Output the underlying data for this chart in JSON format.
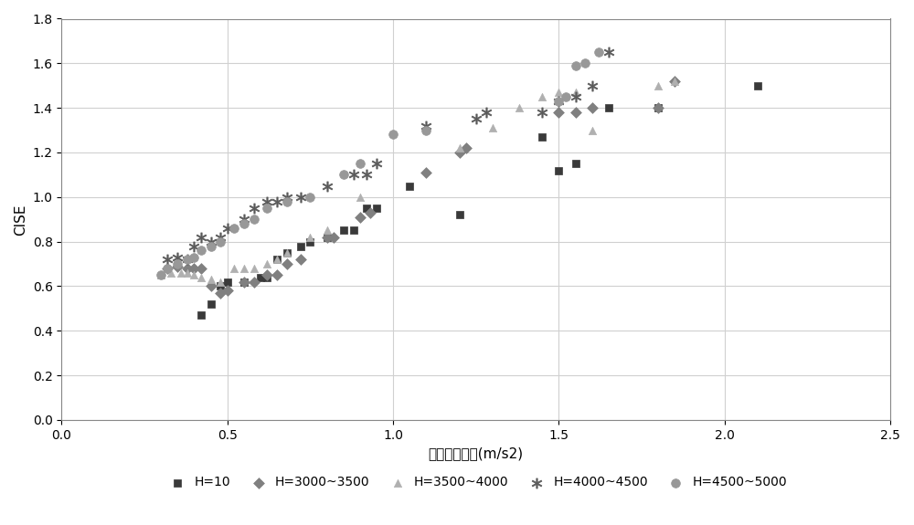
{
  "title": "",
  "xlabel": "横向力加速度(m/s2)",
  "ylabel": "CISE",
  "xlim": [
    0.0,
    2.5
  ],
  "ylim": [
    0.0,
    1.8
  ],
  "xticks": [
    0.0,
    0.5,
    1.0,
    1.5,
    2.0,
    2.5
  ],
  "yticks": [
    0.0,
    0.2,
    0.4,
    0.6,
    0.8,
    1.0,
    1.2,
    1.4,
    1.6,
    1.8
  ],
  "series": [
    {
      "label": "H=10",
      "color": "#3a3a3a",
      "marker": "s",
      "markersize": 6,
      "x": [
        0.42,
        0.45,
        0.48,
        0.5,
        0.55,
        0.6,
        0.62,
        0.65,
        0.68,
        0.72,
        0.75,
        0.8,
        0.85,
        0.88,
        0.92,
        0.95,
        1.05,
        1.2,
        1.45,
        1.5,
        1.55,
        1.65,
        1.8,
        2.1
      ],
      "y": [
        0.47,
        0.52,
        0.6,
        0.62,
        0.62,
        0.64,
        0.64,
        0.72,
        0.75,
        0.78,
        0.8,
        0.82,
        0.85,
        0.85,
        0.95,
        0.95,
        1.05,
        0.92,
        1.27,
        1.12,
        1.15,
        1.4,
        1.4,
        1.5
      ]
    },
    {
      "label": "H=3000~3500",
      "color": "#808080",
      "marker": "D",
      "markersize": 6,
      "x": [
        0.32,
        0.35,
        0.38,
        0.4,
        0.42,
        0.45,
        0.48,
        0.5,
        0.55,
        0.58,
        0.62,
        0.65,
        0.68,
        0.72,
        0.8,
        0.82,
        0.9,
        0.93,
        1.1,
        1.2,
        1.22,
        1.5,
        1.55,
        1.6,
        1.8,
        1.85
      ],
      "y": [
        0.68,
        0.69,
        0.68,
        0.68,
        0.68,
        0.6,
        0.57,
        0.58,
        0.62,
        0.62,
        0.65,
        0.65,
        0.7,
        0.72,
        0.82,
        0.82,
        0.91,
        0.93,
        1.11,
        1.2,
        1.22,
        1.38,
        1.38,
        1.4,
        1.4,
        1.52
      ]
    },
    {
      "label": "H=3500~4000",
      "color": "#b0b0b0",
      "marker": "^",
      "markersize": 6,
      "x": [
        0.3,
        0.33,
        0.36,
        0.38,
        0.4,
        0.42,
        0.45,
        0.48,
        0.52,
        0.55,
        0.58,
        0.62,
        0.65,
        0.68,
        0.75,
        0.8,
        0.9,
        1.2,
        1.3,
        1.38,
        1.45,
        1.5,
        1.55,
        1.6,
        1.8,
        1.85
      ],
      "y": [
        0.65,
        0.66,
        0.66,
        0.66,
        0.65,
        0.64,
        0.63,
        0.62,
        0.68,
        0.68,
        0.68,
        0.7,
        0.72,
        0.75,
        0.82,
        0.85,
        1.0,
        1.22,
        1.31,
        1.4,
        1.45,
        1.47,
        1.47,
        1.3,
        1.5,
        1.52
      ]
    },
    {
      "label": "H=4000~4500",
      "color": "#585858",
      "marker": "x_star",
      "markersize": 8,
      "x": [
        0.32,
        0.35,
        0.38,
        0.4,
        0.42,
        0.45,
        0.48,
        0.5,
        0.55,
        0.58,
        0.62,
        0.65,
        0.68,
        0.72,
        0.8,
        0.88,
        0.92,
        0.95,
        1.1,
        1.25,
        1.28,
        1.45,
        1.5,
        1.55,
        1.6,
        1.65
      ],
      "y": [
        0.72,
        0.73,
        0.72,
        0.78,
        0.82,
        0.8,
        0.82,
        0.86,
        0.9,
        0.95,
        0.98,
        0.98,
        1.0,
        1.0,
        1.05,
        1.1,
        1.1,
        1.15,
        1.32,
        1.35,
        1.38,
        1.38,
        1.43,
        1.45,
        1.5,
        1.65
      ]
    },
    {
      "label": "H=4500~5000",
      "color": "#989898",
      "marker": "o",
      "markersize": 7,
      "x": [
        0.3,
        0.32,
        0.35,
        0.38,
        0.4,
        0.42,
        0.45,
        0.48,
        0.52,
        0.55,
        0.58,
        0.62,
        0.68,
        0.75,
        0.85,
        0.9,
        1.0,
        1.1,
        1.5,
        1.52,
        1.55,
        1.58,
        1.62
      ],
      "y": [
        0.65,
        0.68,
        0.7,
        0.72,
        0.73,
        0.76,
        0.78,
        0.8,
        0.86,
        0.88,
        0.9,
        0.95,
        0.98,
        1.0,
        1.1,
        1.15,
        1.28,
        1.3,
        1.43,
        1.45,
        1.59,
        1.6,
        1.65
      ]
    }
  ],
  "legend_loc": "lower center",
  "legend_ncol": 5,
  "figure_facecolor": "#ffffff",
  "axes_facecolor": "#ffffff",
  "grid_color": "#d0d0d0",
  "tick_labelsize": 10,
  "label_fontsize": 11
}
